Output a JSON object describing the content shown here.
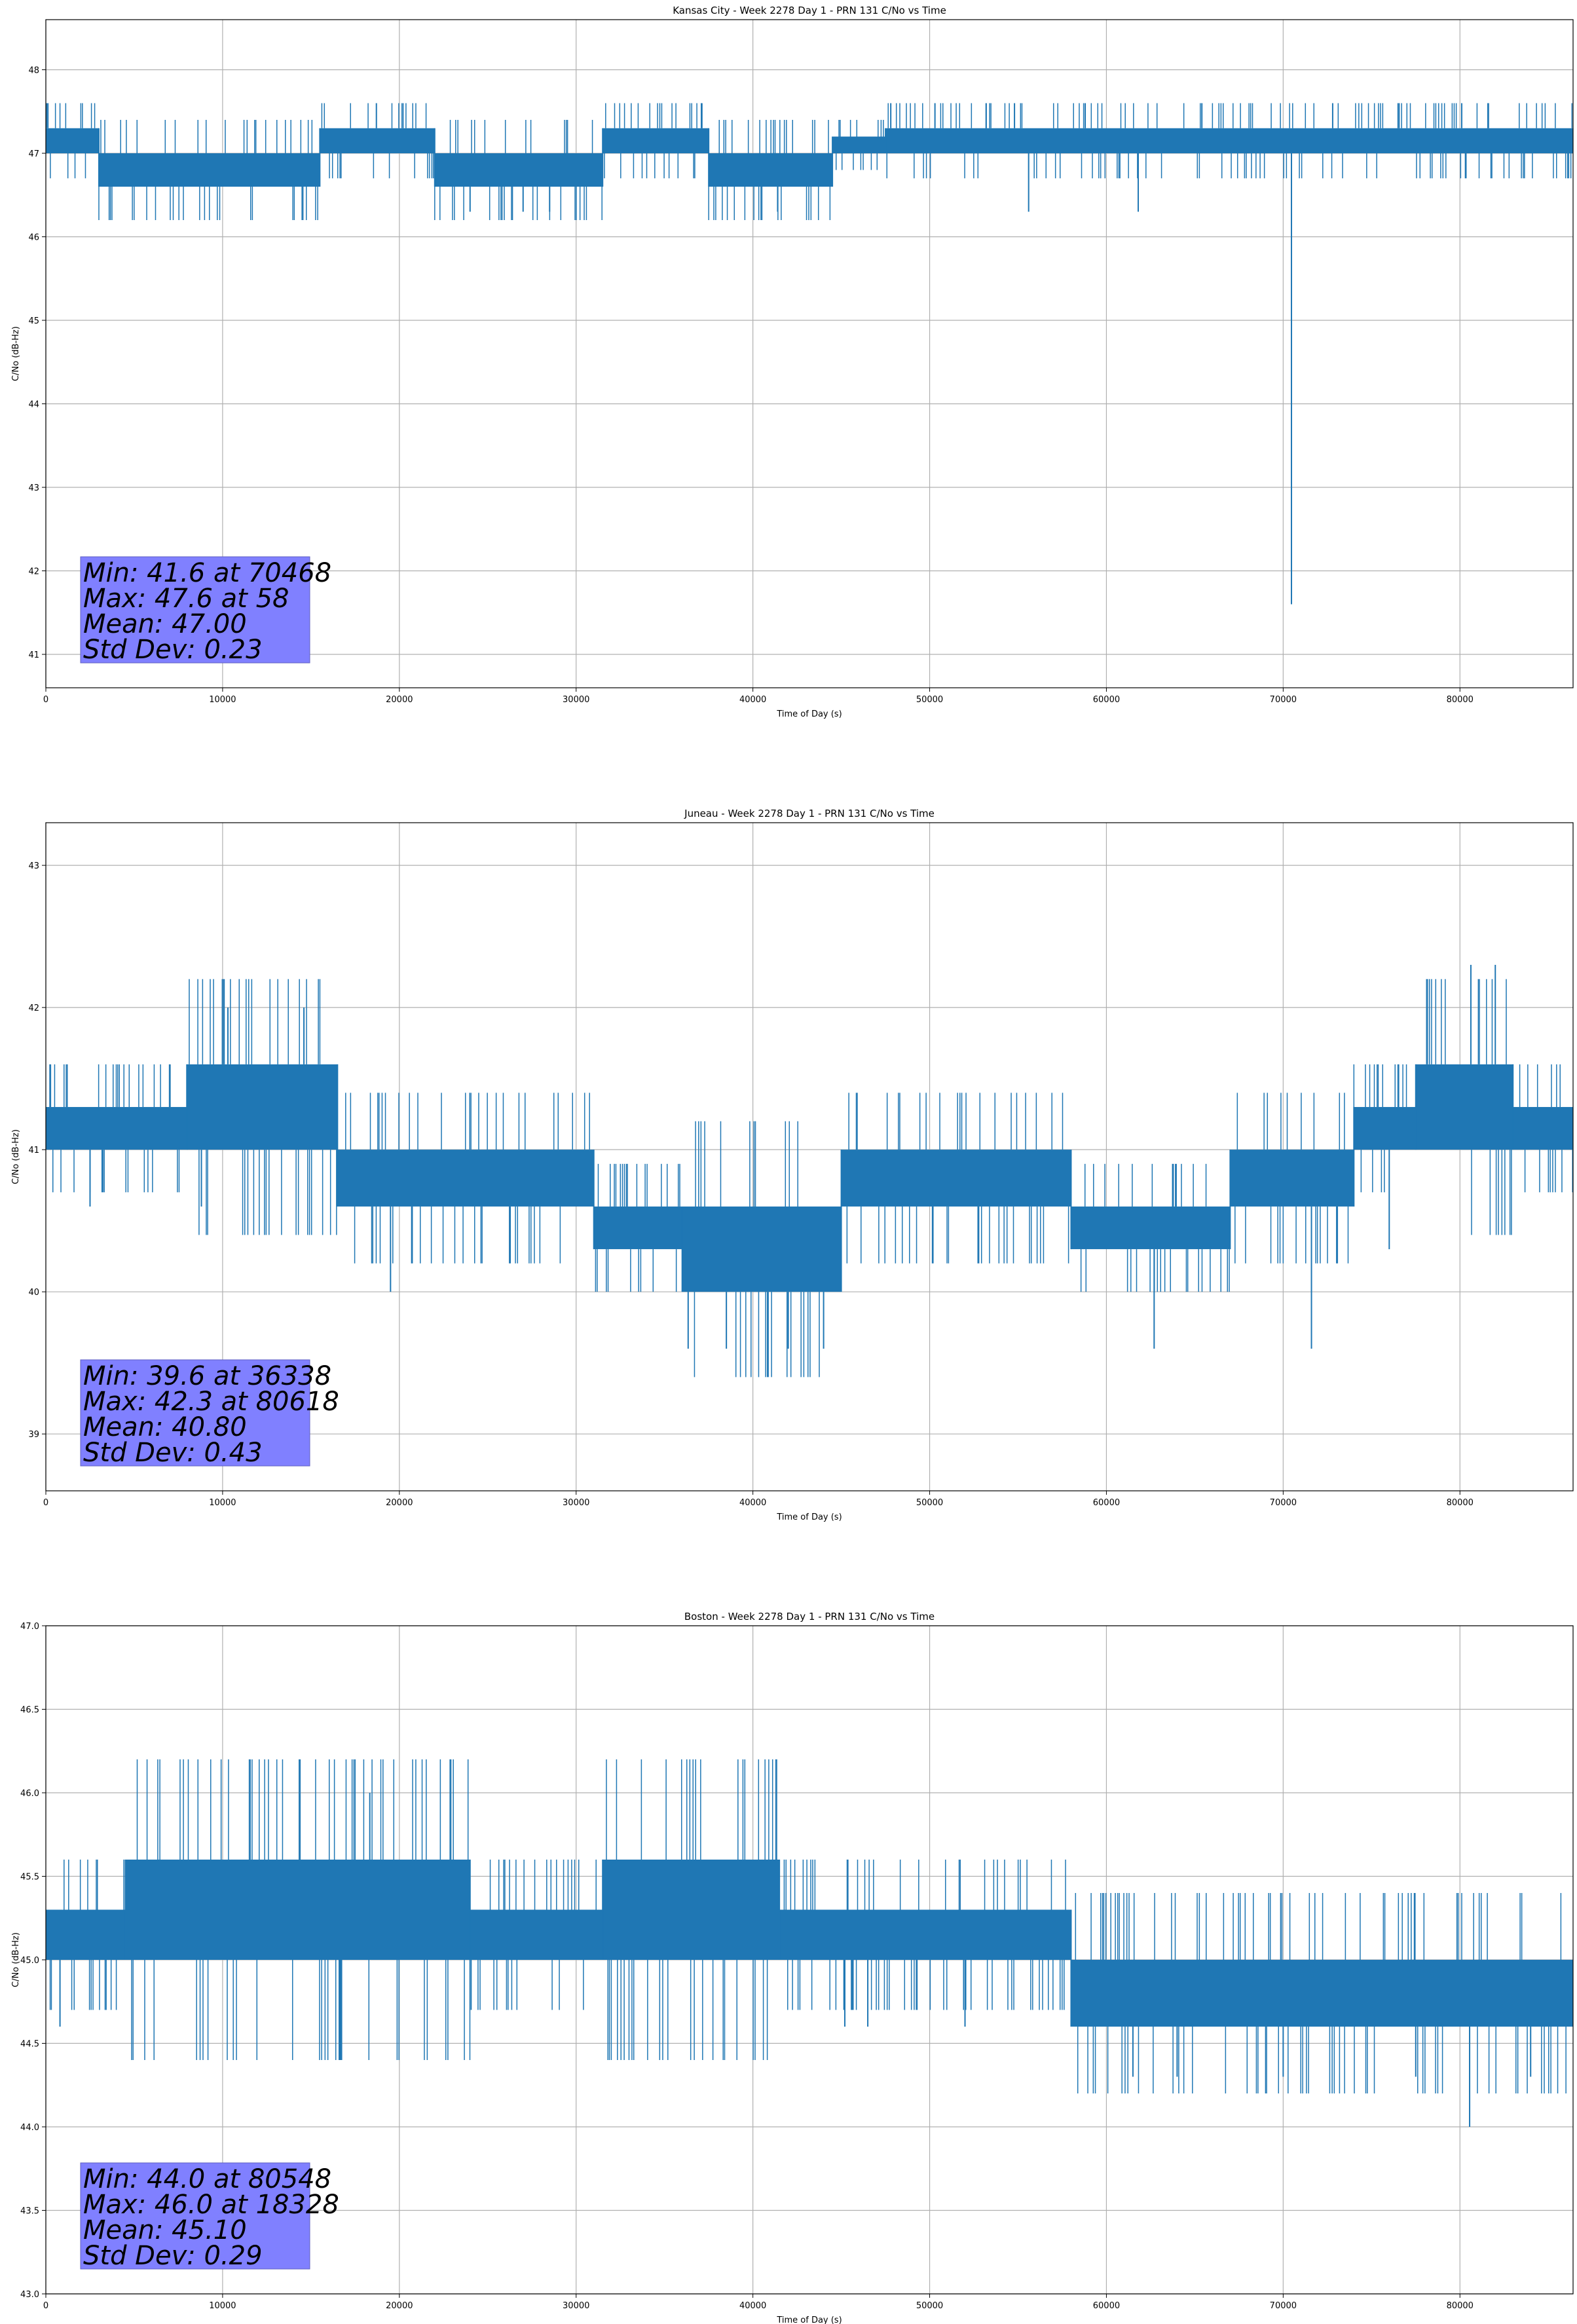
{
  "chart_data": [
    {
      "type": "line",
      "title": "Kansas City - Week 2278 Day 1 - PRN 131 C/No vs Time",
      "xlabel": "Time of Day (s)",
      "ylabel": "C/No (dB-Hz)",
      "xlim": [
        0,
        86400
      ],
      "ylim": [
        40.6,
        48.6
      ],
      "xticks": [
        0,
        10000,
        20000,
        30000,
        40000,
        50000,
        60000,
        70000,
        80000
      ],
      "yticks": [
        41,
        42,
        43,
        44,
        45,
        46,
        47,
        48
      ],
      "ytick_labels": [
        "41",
        "42",
        "43",
        "44",
        "45",
        "46",
        "47",
        "48"
      ],
      "grid": true,
      "series_color": "#1f77b4",
      "series": [
        {
          "bands": [
            {
              "x": [
                0,
                3000
              ],
              "y": [
                47.0,
                47.3
              ]
            },
            {
              "x": [
                3000,
                15500
              ],
              "y": [
                46.6,
                47.0
              ]
            },
            {
              "x": [
                15500,
                22000
              ],
              "y": [
                47.0,
                47.3
              ]
            },
            {
              "x": [
                22000,
                31500
              ],
              "y": [
                46.6,
                47.0
              ]
            },
            {
              "x": [
                31500,
                37500
              ],
              "y": [
                47.0,
                47.3
              ]
            },
            {
              "x": [
                37500,
                44500
              ],
              "y": [
                46.6,
                47.0
              ]
            },
            {
              "x": [
                44500,
                47500
              ],
              "y": [
                47.0,
                47.2
              ]
            },
            {
              "x": [
                47500,
                86400
              ],
              "y": [
                47.0,
                47.3
              ]
            }
          ],
          "spikes": [
            {
              "x": 58,
              "y": 47.6
            },
            {
              "x": 18700,
              "y": 47.6
            },
            {
              "x": 47800,
              "y": 47.6
            },
            {
              "x": 50300,
              "y": 47.6
            },
            {
              "x": 53200,
              "y": 47.6
            },
            {
              "x": 54800,
              "y": 47.6
            },
            {
              "x": 58800,
              "y": 47.6
            },
            {
              "x": 65400,
              "y": 47.6
            },
            {
              "x": 72800,
              "y": 47.6
            },
            {
              "x": 76500,
              "y": 47.6
            },
            {
              "x": 80100,
              "y": 47.6
            },
            {
              "x": 24000,
              "y": 46.3
            },
            {
              "x": 27000,
              "y": 46.3
            },
            {
              "x": 28500,
              "y": 46.3
            },
            {
              "x": 41400,
              "y": 46.3
            },
            {
              "x": 55600,
              "y": 46.3
            },
            {
              "x": 61800,
              "y": 46.3
            },
            {
              "x": 70468,
              "y": 41.6
            }
          ]
        }
      ],
      "stats": [
        "Min: 41.6 at 70468",
        "Max: 47.6 at 58",
        "Mean: 47.00",
        "Std Dev: 0.23"
      ],
      "stats_box_color": "#8080ff"
    },
    {
      "type": "line",
      "title": "Juneau - Week 2278 Day 1 - PRN 131 C/No vs Time",
      "xlabel": "Time of Day (s)",
      "ylabel": "C/No (dB-Hz)",
      "xlim": [
        0,
        86400
      ],
      "ylim": [
        38.6,
        43.3
      ],
      "xticks": [
        0,
        10000,
        20000,
        30000,
        40000,
        50000,
        60000,
        70000,
        80000
      ],
      "yticks": [
        39,
        40,
        41,
        42,
        43
      ],
      "ytick_labels": [
        "39",
        "40",
        "41",
        "42",
        "43"
      ],
      "grid": true,
      "series_color": "#1f77b4",
      "series": [
        {
          "bands": [
            {
              "x": [
                0,
                8000
              ],
              "y": [
                41.0,
                41.3
              ]
            },
            {
              "x": [
                8000,
                16500
              ],
              "y": [
                41.0,
                41.6
              ]
            },
            {
              "x": [
                16500,
                31000
              ],
              "y": [
                40.6,
                41.0
              ]
            },
            {
              "x": [
                31000,
                36000
              ],
              "y": [
                40.3,
                40.6
              ]
            },
            {
              "x": [
                36000,
                45000
              ],
              "y": [
                40.0,
                40.6
              ]
            },
            {
              "x": [
                45000,
                58000
              ],
              "y": [
                40.6,
                41.0
              ]
            },
            {
              "x": [
                58000,
                67000
              ],
              "y": [
                40.3,
                40.6
              ]
            },
            {
              "x": [
                67000,
                74000
              ],
              "y": [
                40.6,
                41.0
              ]
            },
            {
              "x": [
                74000,
                77500
              ],
              "y": [
                41.0,
                41.3
              ]
            },
            {
              "x": [
                77500,
                83000
              ],
              "y": [
                41.0,
                41.6
              ]
            },
            {
              "x": [
                83000,
                86400
              ],
              "y": [
                41.0,
                41.3
              ]
            }
          ],
          "spikes": [
            {
              "x": 10300,
              "y": 42.0
            },
            {
              "x": 14600,
              "y": 42.0
            },
            {
              "x": 80618,
              "y": 42.3
            },
            {
              "x": 82000,
              "y": 42.3
            },
            {
              "x": 2500,
              "y": 40.6
            },
            {
              "x": 8800,
              "y": 40.6
            },
            {
              "x": 19500,
              "y": 40.0
            },
            {
              "x": 36338,
              "y": 39.6
            },
            {
              "x": 38500,
              "y": 39.6
            },
            {
              "x": 42000,
              "y": 39.6
            },
            {
              "x": 44000,
              "y": 39.6
            },
            {
              "x": 62700,
              "y": 39.6
            },
            {
              "x": 71600,
              "y": 39.6
            },
            {
              "x": 76000,
              "y": 40.3
            }
          ]
        }
      ],
      "stats": [
        "Min: 39.6 at 36338",
        "Max: 42.3 at 80618",
        "Mean: 40.80",
        "Std Dev: 0.43"
      ],
      "stats_box_color": "#8080ff"
    },
    {
      "type": "line",
      "title": "Boston - Week 2278 Day 1 - PRN 131 C/No vs Time",
      "xlabel": "Time of Day (s)",
      "ylabel": "C/No (dB-Hz)",
      "xlim": [
        0,
        86400
      ],
      "ylim": [
        43.0,
        47.0
      ],
      "xticks": [
        0,
        10000,
        20000,
        30000,
        40000,
        50000,
        60000,
        70000,
        80000
      ],
      "yticks": [
        43.0,
        43.5,
        44.0,
        44.5,
        45.0,
        45.5,
        46.0,
        46.5,
        47.0
      ],
      "ytick_labels": [
        "43.0",
        "43.5",
        "44.0",
        "44.5",
        "45.0",
        "45.5",
        "46.0",
        "46.5",
        "47.0"
      ],
      "grid": true,
      "series_color": "#1f77b4",
      "series": [
        {
          "bands": [
            {
              "x": [
                0,
                4500
              ],
              "y": [
                45.0,
                45.3
              ]
            },
            {
              "x": [
                4500,
                24000
              ],
              "y": [
                45.0,
                45.6
              ]
            },
            {
              "x": [
                24000,
                31500
              ],
              "y": [
                45.0,
                45.3
              ]
            },
            {
              "x": [
                31500,
                41500
              ],
              "y": [
                45.0,
                45.6
              ]
            },
            {
              "x": [
                41500,
                58000
              ],
              "y": [
                45.0,
                45.3
              ]
            },
            {
              "x": [
                58000,
                86400
              ],
              "y": [
                44.6,
                45.0
              ]
            }
          ],
          "spikes": [
            {
              "x": 800,
              "y": 44.6
            },
            {
              "x": 18328,
              "y": 46.0
            },
            {
              "x": 45200,
              "y": 44.6
            },
            {
              "x": 46500,
              "y": 44.6
            },
            {
              "x": 52000,
              "y": 44.6
            },
            {
              "x": 61500,
              "y": 44.3
            },
            {
              "x": 64000,
              "y": 44.3
            },
            {
              "x": 70000,
              "y": 44.3
            },
            {
              "x": 77500,
              "y": 44.3
            },
            {
              "x": 80548,
              "y": 44.0
            },
            {
              "x": 84000,
              "y": 44.3
            }
          ]
        }
      ],
      "stats": [
        "Min: 44.0 at 80548",
        "Max: 46.0 at 18328",
        "Mean: 45.10",
        "Std Dev: 0.29"
      ],
      "stats_box_color": "#8080ff"
    }
  ]
}
